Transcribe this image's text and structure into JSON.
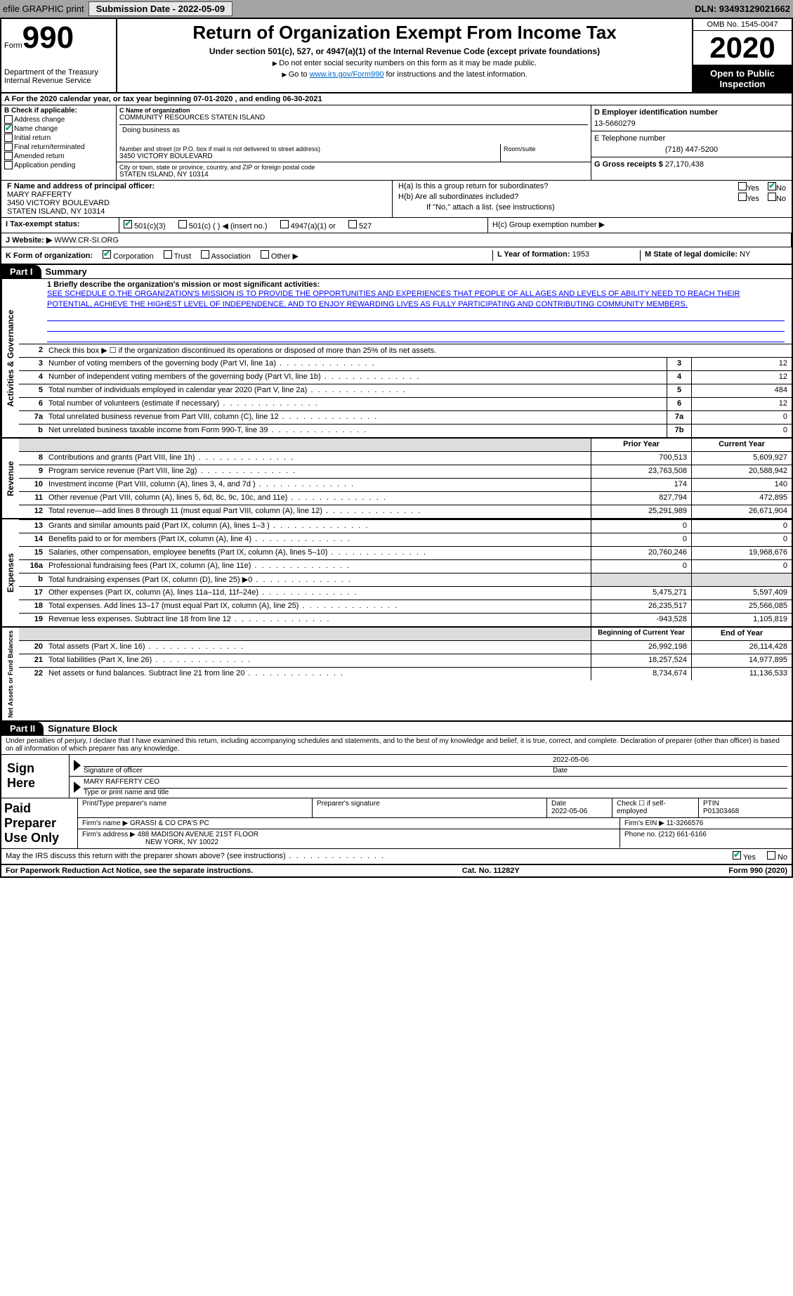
{
  "top_bar": {
    "efile_label": "efile GRAPHIC print",
    "submission_label": "Submission Date - 2022-05-09",
    "dln": "DLN: 93493129021662"
  },
  "header": {
    "form_label": "Form",
    "form_number": "990",
    "dept": "Department of the Treasury",
    "irs": "Internal Revenue Service",
    "title": "Return of Organization Exempt From Income Tax",
    "subtitle": "Under section 501(c), 527, or 4947(a)(1) of the Internal Revenue Code (except private foundations)",
    "warn": "Do not enter social security numbers on this form as it may be made public.",
    "goto_pre": "Go to ",
    "goto_link": "www.irs.gov/Form990",
    "goto_post": " for instructions and the latest information.",
    "omb": "OMB No. 1545-0047",
    "year": "2020",
    "open": "Open to Public Inspection"
  },
  "period": "A For the 2020 calendar year, or tax year beginning 07-01-2020     , and ending 06-30-2021",
  "section_b": {
    "label": "B Check if applicable:",
    "items": [
      "Address change",
      "Name change",
      "Initial return",
      "Final return/terminated",
      "Amended return",
      "Application pending"
    ],
    "checked_idx": 1
  },
  "section_c": {
    "name_lbl": "C Name of organization",
    "name": "COMMUNITY RESOURCES STATEN ISLAND",
    "dba_lbl": "Doing business as",
    "addr_lbl": "Number and street (or P.O. box if mail is not delivered to street address)",
    "addr": "3450 VICTORY BOULEVARD",
    "room_lbl": "Room/suite",
    "city_lbl": "City or town, state or province, country, and ZIP or foreign postal code",
    "city": "STATEN ISLAND, NY  10314"
  },
  "section_de": {
    "d_lbl": "D Employer identification number",
    "d_val": "13-5660279",
    "e_lbl": "E Telephone number",
    "e_val": "(718) 447-5200",
    "g_lbl": "G Gross receipts $",
    "g_val": "27,170,438"
  },
  "section_f": {
    "lbl": "F Name and address of principal officer:",
    "name": "MARY RAFFERTY",
    "addr1": "3450 VICTORY BOULEVARD",
    "addr2": "STATEN ISLAND, NY  10314"
  },
  "section_h": {
    "ha": "H(a)  Is this a group return for subordinates?",
    "hb": "H(b)  Are all subordinates included?",
    "hb_note": "If \"No,\" attach a list. (see instructions)",
    "hc": "H(c)  Group exemption number ▶"
  },
  "row_i": {
    "lbl": "I Tax-exempt status:",
    "opts": [
      "501(c)(3)",
      "501(c) (  ) ◀ (insert no.)",
      "4947(a)(1) or",
      "527"
    ]
  },
  "row_j": {
    "lbl": "J Website: ▶",
    "val": "WWW.CR-SI.ORG"
  },
  "row_k": {
    "lbl": "K Form of organization:",
    "opts": [
      "Corporation",
      "Trust",
      "Association",
      "Other ▶"
    ],
    "l_lbl": "L Year of formation:",
    "l_val": "1953",
    "m_lbl": "M State of legal domicile:",
    "m_val": "NY"
  },
  "part1": {
    "tag": "Part I",
    "title": "Summary",
    "line1_lbl": "1 Briefly describe the organization's mission or most significant activities:",
    "mission": "SEE SCHEDULE O.THE ORGANIZATION'S MISSION IS TO PROVIDE THE OPPORTUNITIES AND EXPERIENCES THAT PEOPLE OF ALL AGES AND LEVELS OF ABILITY NEED TO REACH THEIR POTENTIAL, ACHIEVE THE HIGHEST LEVEL OF INDEPENDENCE, AND TO ENJOY REWARDING LIVES AS FULLY PARTICIPATING AND CONTRIBUTING COMMUNITY MEMBERS.",
    "line2": "Check this box ▶ ☐ if the organization discontinued its operations or disposed of more than 25% of its net assets.",
    "gov_lines": [
      {
        "n": "3",
        "t": "Number of voting members of the governing body (Part VI, line 1a)",
        "box": "3",
        "v": "12"
      },
      {
        "n": "4",
        "t": "Number of independent voting members of the governing body (Part VI, line 1b)",
        "box": "4",
        "v": "12"
      },
      {
        "n": "5",
        "t": "Total number of individuals employed in calendar year 2020 (Part V, line 2a)",
        "box": "5",
        "v": "484"
      },
      {
        "n": "6",
        "t": "Total number of volunteers (estimate if necessary)",
        "box": "6",
        "v": "12"
      },
      {
        "n": "7a",
        "t": "Total unrelated business revenue from Part VIII, column (C), line 12",
        "box": "7a",
        "v": "0"
      },
      {
        "n": "b",
        "t": "Net unrelated business taxable income from Form 990-T, line 39",
        "box": "7b",
        "v": "0"
      }
    ],
    "py_hdr": "Prior Year",
    "cy_hdr": "Current Year",
    "rev_lines": [
      {
        "n": "8",
        "t": "Contributions and grants (Part VIII, line 1h)",
        "py": "700,513",
        "cy": "5,609,927"
      },
      {
        "n": "9",
        "t": "Program service revenue (Part VIII, line 2g)",
        "py": "23,763,508",
        "cy": "20,588,942"
      },
      {
        "n": "10",
        "t": "Investment income (Part VIII, column (A), lines 3, 4, and 7d )",
        "py": "174",
        "cy": "140"
      },
      {
        "n": "11",
        "t": "Other revenue (Part VIII, column (A), lines 5, 6d, 8c, 9c, 10c, and 11e)",
        "py": "827,794",
        "cy": "472,895"
      },
      {
        "n": "12",
        "t": "Total revenue—add lines 8 through 11 (must equal Part VIII, column (A), line 12)",
        "py": "25,291,989",
        "cy": "26,671,904"
      }
    ],
    "exp_lines": [
      {
        "n": "13",
        "t": "Grants and similar amounts paid (Part IX, column (A), lines 1–3 )",
        "py": "0",
        "cy": "0"
      },
      {
        "n": "14",
        "t": "Benefits paid to or for members (Part IX, column (A), line 4)",
        "py": "0",
        "cy": "0"
      },
      {
        "n": "15",
        "t": "Salaries, other compensation, employee benefits (Part IX, column (A), lines 5–10)",
        "py": "20,760,246",
        "cy": "19,968,676"
      },
      {
        "n": "16a",
        "t": "Professional fundraising fees (Part IX, column (A), line 11e)",
        "py": "0",
        "cy": "0"
      },
      {
        "n": "b",
        "t": "Total fundraising expenses (Part IX, column (D), line 25) ▶0",
        "py": "",
        "cy": "",
        "shaded": true
      },
      {
        "n": "17",
        "t": "Other expenses (Part IX, column (A), lines 11a–11d, 11f–24e)",
        "py": "5,475,271",
        "cy": "5,597,409"
      },
      {
        "n": "18",
        "t": "Total expenses. Add lines 13–17 (must equal Part IX, column (A), line 25)",
        "py": "26,235,517",
        "cy": "25,566,085"
      },
      {
        "n": "19",
        "t": "Revenue less expenses. Subtract line 18 from line 12",
        "py": "-943,528",
        "cy": "1,105,819"
      }
    ],
    "na_hdr_l": "Beginning of Current Year",
    "na_hdr_r": "End of Year",
    "na_lines": [
      {
        "n": "20",
        "t": "Total assets (Part X, line 16)",
        "py": "26,992,198",
        "cy": "26,114,428"
      },
      {
        "n": "21",
        "t": "Total liabilities (Part X, line 26)",
        "py": "18,257,524",
        "cy": "14,977,895"
      },
      {
        "n": "22",
        "t": "Net assets or fund balances. Subtract line 21 from line 20",
        "py": "8,734,674",
        "cy": "11,136,533"
      }
    ],
    "vlabels": {
      "gov": "Activities & Governance",
      "rev": "Revenue",
      "exp": "Expenses",
      "na": "Net Assets or Fund Balances"
    }
  },
  "part2": {
    "tag": "Part II",
    "title": "Signature Block",
    "decl": "Under penalties of perjury, I declare that I have examined this return, including accompanying schedules and statements, and to the best of my knowledge and belief, it is true, correct, and complete. Declaration of preparer (other than officer) is based on all information of which preparer has any knowledge.",
    "sign_here": "Sign Here",
    "sig_officer": "Signature of officer",
    "sig_date": "2022-05-06",
    "date_lbl": "Date",
    "officer_name": "MARY RAFFERTY CEO",
    "type_name_lbl": "Type or print name and title",
    "paid_lbl": "Paid Preparer Use Only",
    "p_name_lbl": "Print/Type preparer's name",
    "p_sig_lbl": "Preparer's signature",
    "p_date_lbl": "Date",
    "p_date": "2022-05-06",
    "p_check_lbl": "Check ☐ if self-employed",
    "ptin_lbl": "PTIN",
    "ptin": "P01303468",
    "firm_name_lbl": "Firm's name    ▶",
    "firm_name": "GRASSI & CO CPA'S PC",
    "firm_ein_lbl": "Firm's EIN ▶",
    "firm_ein": "11-3266576",
    "firm_addr_lbl": "Firm's address ▶",
    "firm_addr1": "488 MADISON AVENUE 21ST FLOOR",
    "firm_addr2": "NEW YORK, NY  10022",
    "phone_lbl": "Phone no.",
    "phone": "(212) 661-6166",
    "discuss": "May the IRS discuss this return with the preparer shown above? (see instructions)"
  },
  "footer": {
    "pra": "For Paperwork Reduction Act Notice, see the separate instructions.",
    "cat": "Cat. No. 11282Y",
    "form": "Form 990 (2020)"
  },
  "labels": {
    "yes": "Yes",
    "no": "No"
  }
}
